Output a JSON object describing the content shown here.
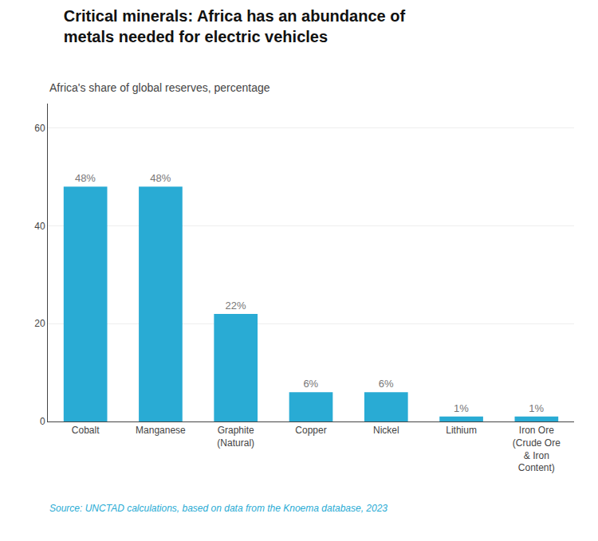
{
  "chart_data": {
    "type": "bar",
    "title": "Critical minerals: Africa has an abundance of\nmetals needed for electric vehicles",
    "subtitle": "Africa's share of global reserves, percentage",
    "annotations": [
      "Source: UNCTAD calculations, based on data from the Knoema database, 2023"
    ],
    "categories": [
      "Cobalt",
      "Manganese",
      "Graphite\n(Natural)",
      "Copper",
      "Nickel",
      "Lithium",
      "Iron Ore\n(Crude Ore\n& Iron\nContent)"
    ],
    "values": [
      48,
      48,
      22,
      6,
      6,
      1,
      1
    ],
    "value_labels": [
      "48%",
      "48%",
      "22%",
      "6%",
      "6%",
      "1%",
      "1%"
    ],
    "data_labels": true,
    "color": "#29ABD4",
    "ylim": [
      0,
      65
    ],
    "yticks": [
      0,
      20,
      40,
      60
    ],
    "grid": true
  }
}
